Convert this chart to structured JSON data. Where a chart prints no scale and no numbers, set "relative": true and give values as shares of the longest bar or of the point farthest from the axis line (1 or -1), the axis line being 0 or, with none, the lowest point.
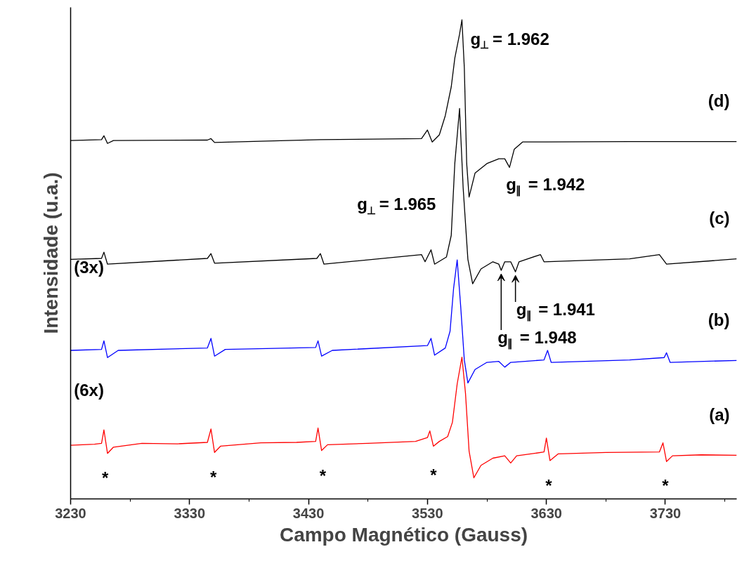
{
  "chart_data": {
    "type": "line",
    "relative": true,
    "xlabel": "Campo Magnético (Gauss)",
    "ylabel": "Intensidade (u.a.)",
    "xlim": [
      3230,
      3790
    ],
    "xticks": [
      3230,
      3330,
      3430,
      3530,
      3630,
      3730
    ],
    "grid": false,
    "legend": false,
    "marker": "none",
    "line_style": "solid",
    "series": [
      {
        "name": "(a)",
        "color": "#ff0000",
        "x": [
          3230,
          3250,
          3256,
          3258,
          3261,
          3266,
          3290,
          3320,
          3345,
          3348,
          3351,
          3356,
          3390,
          3420,
          3436,
          3438,
          3441,
          3446,
          3480,
          3520,
          3530,
          3532,
          3535,
          3540,
          3547,
          3551,
          3555,
          3559,
          3562,
          3565,
          3569,
          3575,
          3585,
          3595,
          3600,
          3605,
          3620,
          3628,
          3630,
          3633,
          3640,
          3680,
          3725,
          3728,
          3731,
          3736,
          3760,
          3790
        ],
        "values": [
          0.112,
          0.114,
          0.116,
          0.144,
          0.095,
          0.108,
          0.116,
          0.115,
          0.118,
          0.146,
          0.097,
          0.11,
          0.117,
          0.118,
          0.12,
          0.148,
          0.101,
          0.113,
          0.116,
          0.12,
          0.128,
          0.142,
          0.11,
          0.12,
          0.13,
          0.16,
          0.24,
          0.296,
          0.22,
          0.1,
          0.044,
          0.07,
          0.085,
          0.09,
          0.075,
          0.09,
          0.095,
          0.098,
          0.127,
          0.08,
          0.094,
          0.097,
          0.098,
          0.117,
          0.078,
          0.09,
          0.092,
          0.091
        ]
      },
      {
        "name": "(b)",
        "color": "#0000ff",
        "x": [
          3230,
          3256,
          3258,
          3261,
          3270,
          3345,
          3348,
          3351,
          3360,
          3436,
          3438,
          3441,
          3450,
          3530,
          3533,
          3536,
          3545,
          3549,
          3552,
          3555,
          3558,
          3561,
          3564,
          3570,
          3580,
          3590,
          3595,
          3600,
          3628,
          3631,
          3634,
          3700,
          3729,
          3731,
          3734,
          3790
        ],
        "values": [
          0.31,
          0.312,
          0.33,
          0.295,
          0.31,
          0.315,
          0.335,
          0.298,
          0.312,
          0.316,
          0.33,
          0.298,
          0.31,
          0.32,
          0.335,
          0.3,
          0.315,
          0.35,
          0.44,
          0.499,
          0.4,
          0.29,
          0.242,
          0.27,
          0.285,
          0.287,
          0.275,
          0.285,
          0.29,
          0.31,
          0.285,
          0.29,
          0.295,
          0.305,
          0.285,
          0.289
        ]
      },
      {
        "name": "(c)",
        "color": "#000000",
        "x": [
          3230,
          3256,
          3258,
          3261,
          3345,
          3348,
          3351,
          3437,
          3440,
          3443,
          3525,
          3528,
          3533,
          3536,
          3546,
          3550,
          3553,
          3557,
          3560,
          3564,
          3568,
          3575,
          3585,
          3590,
          3592,
          3595,
          3600,
          3604,
          3607,
          3625,
          3628,
          3700,
          3725,
          3731,
          3790
        ],
        "values": [
          0.5,
          0.502,
          0.515,
          0.49,
          0.502,
          0.512,
          0.492,
          0.502,
          0.512,
          0.49,
          0.51,
          0.495,
          0.52,
          0.49,
          0.505,
          0.55,
          0.7,
          0.815,
          0.65,
          0.5,
          0.449,
          0.48,
          0.495,
          0.49,
          0.477,
          0.495,
          0.495,
          0.474,
          0.495,
          0.51,
          0.495,
          0.501,
          0.51,
          0.49,
          0.501
        ]
      },
      {
        "name": "(d)",
        "color": "#000000",
        "x": [
          3230,
          3256,
          3258,
          3261,
          3266,
          3345,
          3348,
          3351,
          3440,
          3525,
          3530,
          3534,
          3540,
          3545,
          3550,
          3553,
          3557,
          3559,
          3561,
          3563,
          3565,
          3570,
          3580,
          3590,
          3595,
          3599,
          3603,
          3610,
          3630,
          3700,
          3790
        ],
        "values": [
          0.748,
          0.75,
          0.758,
          0.742,
          0.748,
          0.749,
          0.752,
          0.744,
          0.75,
          0.752,
          0.77,
          0.745,
          0.76,
          0.8,
          0.86,
          0.92,
          0.97,
          1.0,
          0.9,
          0.7,
          0.63,
          0.68,
          0.7,
          0.71,
          0.71,
          0.692,
          0.73,
          0.745,
          0.745,
          0.746,
          0.746
        ]
      }
    ],
    "annotations": [
      {
        "text": "g$_{⊥}$ = 1.962",
        "x": 3559,
        "y": 1.0
      },
      {
        "text": "g$_{∥}$ = 1.942",
        "x": 3599,
        "y": 0.692
      },
      "g$_{⊥}$ = 1.965",
      {
        "text": "g$_{∥}$ = 1.941",
        "x": 3604,
        "y": 0.474
      },
      {
        "text": "g$_{∥}$ = 1.948",
        "x": 3592,
        "y": 0.477
      },
      "(3x)",
      "(6x)",
      {
        "text": "*",
        "x": 3259,
        "y": 0.114
      },
      {
        "text": "*",
        "x": 3350,
        "y": 0.116
      },
      {
        "text": "*",
        "x": 3442,
        "y": 0.118
      },
      {
        "text": "*",
        "x": 3535,
        "y": 0.12
      },
      {
        "text": "*",
        "x": 3632,
        "y": 0.098
      },
      {
        "text": "*",
        "x": 3730,
        "y": 0.098
      }
    ]
  }
}
